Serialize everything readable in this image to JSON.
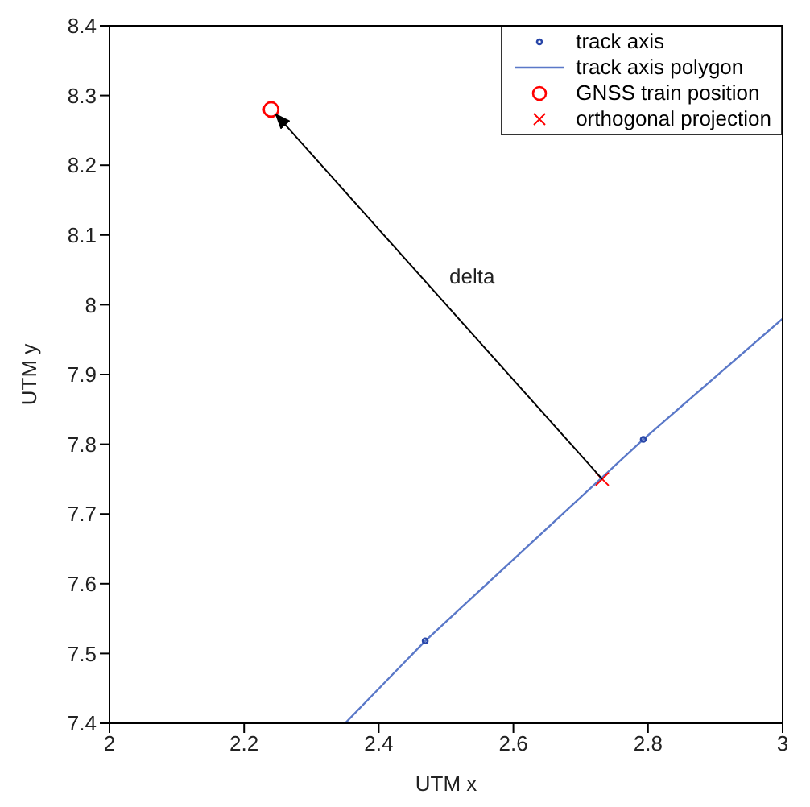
{
  "chart_data": {
    "type": "scatter",
    "xlabel": "UTM x",
    "ylabel": "UTM y",
    "xlim": [
      2,
      3
    ],
    "xticks": [
      2,
      2.2,
      2.4,
      2.6,
      2.8,
      3
    ],
    "ylim": [
      7.4,
      8.4
    ],
    "yticks": [
      7.4,
      7.5,
      7.6,
      7.7,
      7.8,
      7.9,
      8,
      8.1,
      8.2,
      8.3,
      8.4
    ],
    "grid": false,
    "legend": "top right",
    "annotations": [
      "delta"
    ],
    "series": [
      {
        "name": "track axis",
        "marker": "circle",
        "color": "#2846a8",
        "x": [
          2.469,
          2.793
        ],
        "values": [
          7.518,
          7.807
        ]
      },
      {
        "name": "track axis polygon",
        "type": "line",
        "marker": "none",
        "color": "#5a78c8",
        "x": [
          2.35,
          2.469,
          2.793,
          3
        ],
        "values": [
          7.4,
          7.518,
          7.807,
          7.98
        ]
      },
      {
        "name": "GNSS train position",
        "marker": "circle",
        "color": "#ff0000",
        "x": [
          2.24
        ],
        "values": [
          8.28
        ]
      },
      {
        "name": "orthogonal projection",
        "marker": "cross",
        "color": "#ff0000",
        "x": [
          2.732
        ],
        "values": [
          7.75
        ]
      }
    ]
  }
}
